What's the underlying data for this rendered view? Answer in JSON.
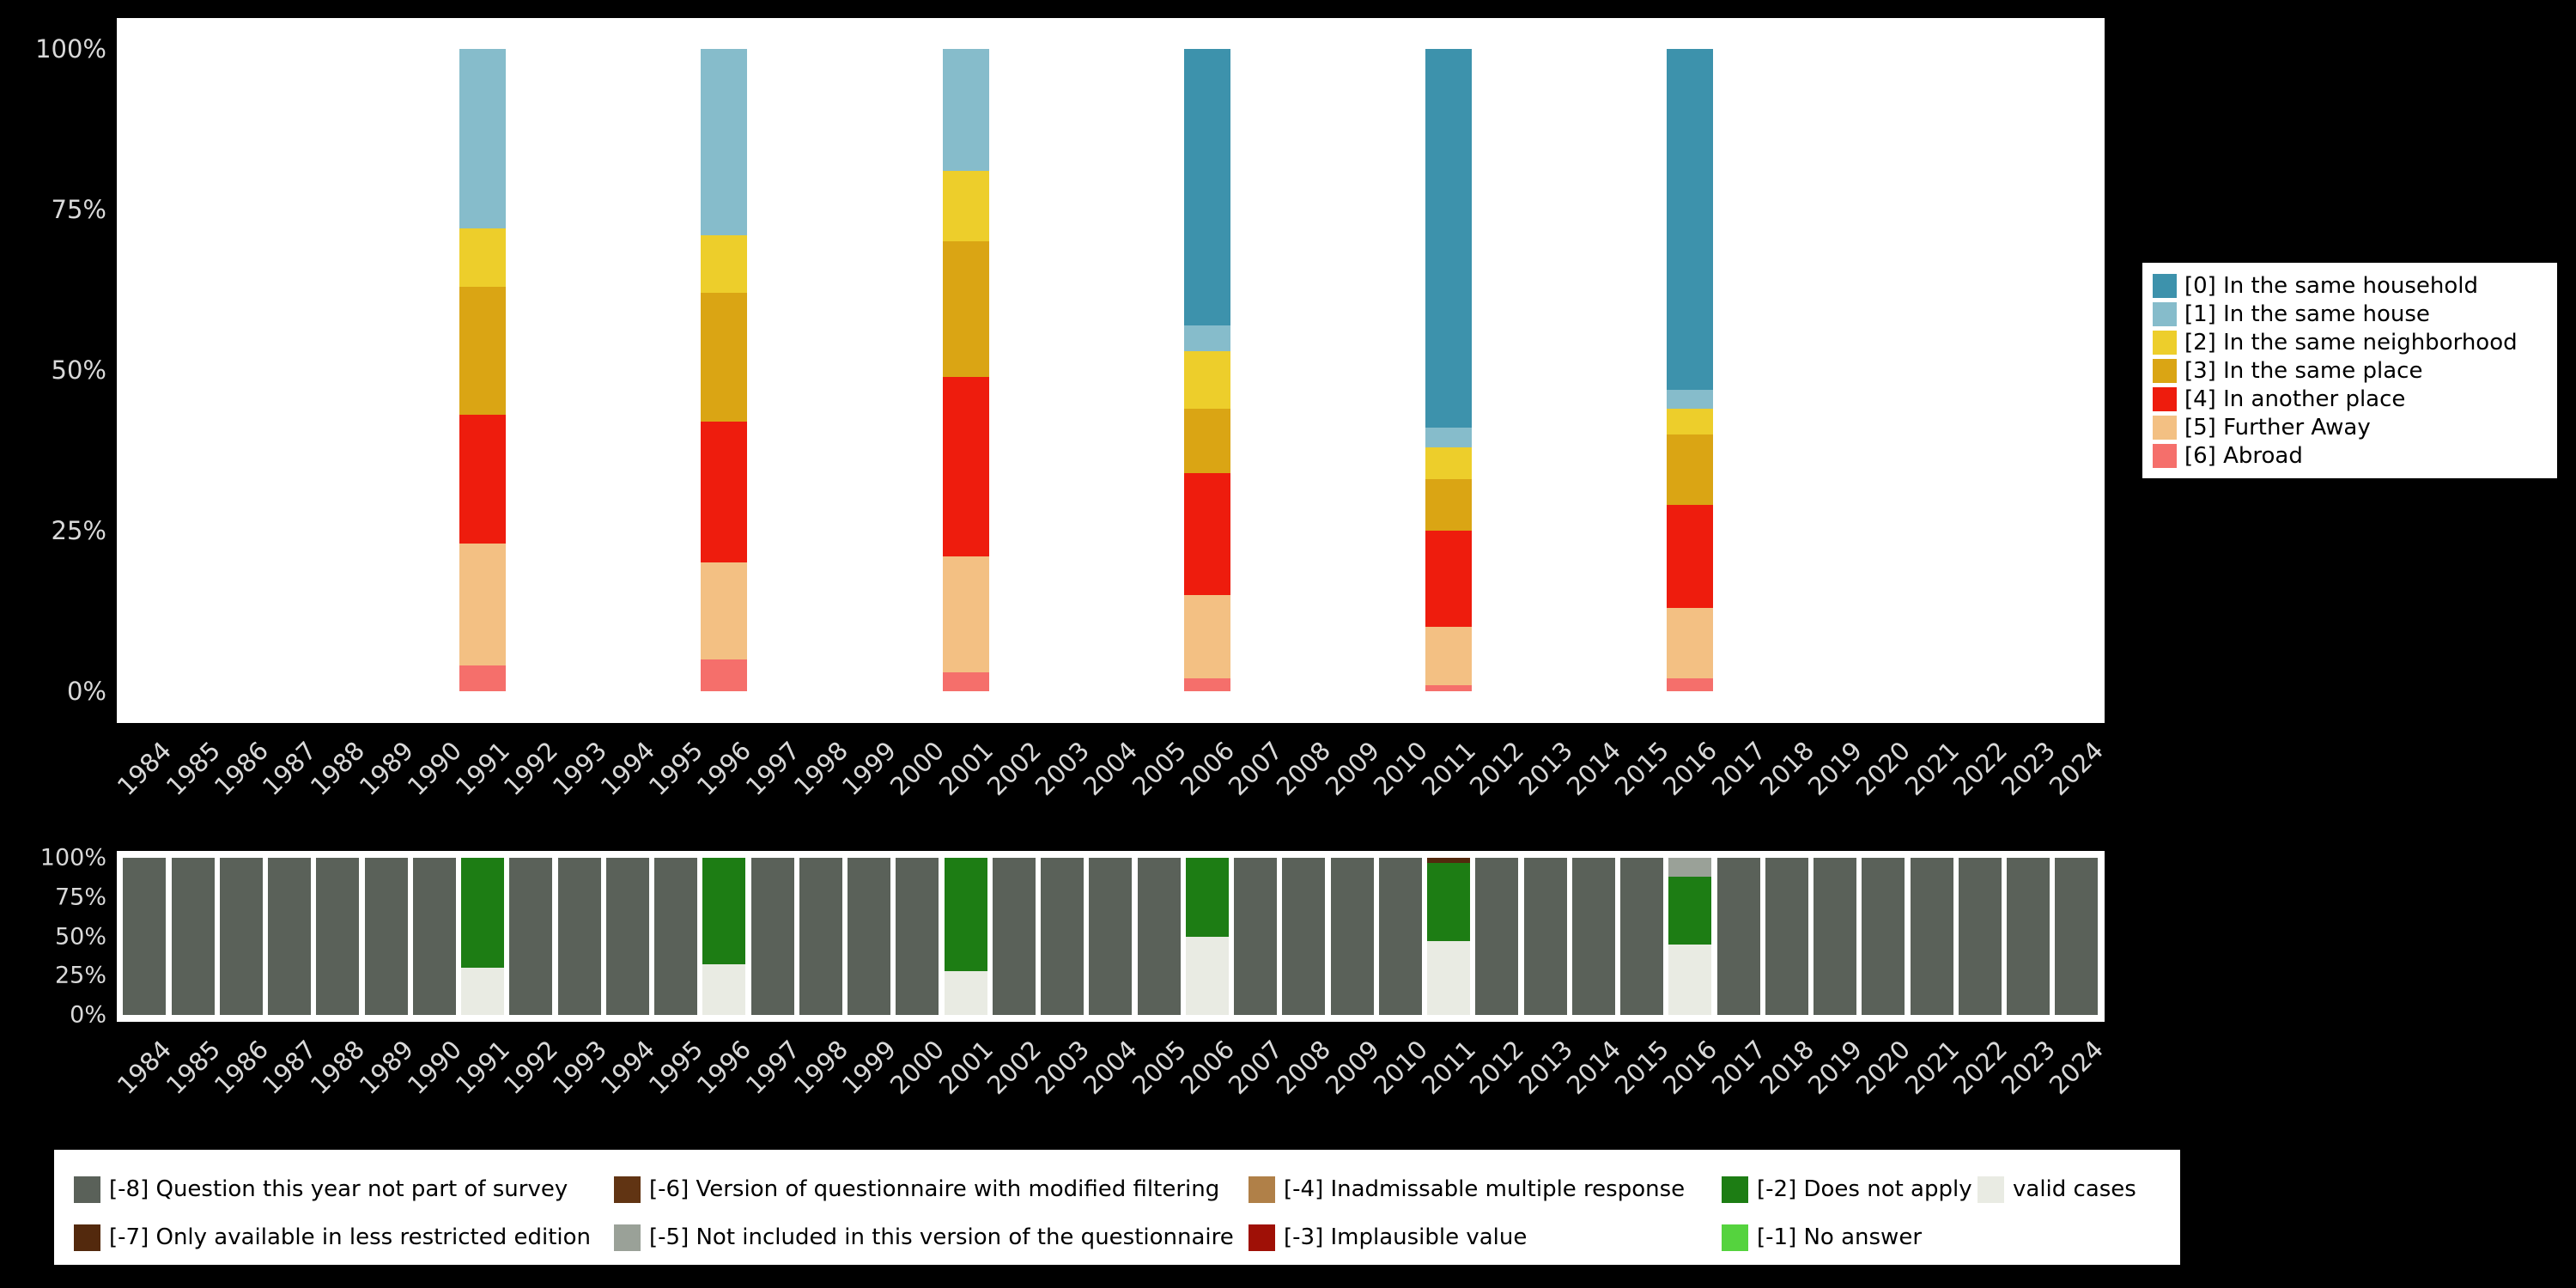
{
  "page": {
    "background": "#000000"
  },
  "chart_data": [
    {
      "type": "bar",
      "stacked": true,
      "title": "",
      "xlabel": "",
      "ylabel": "",
      "ylim": [
        0,
        100
      ],
      "grid": false,
      "legend_position": "right",
      "y_axis": {
        "ticks": [
          "100%",
          "75%",
          "50%",
          "25%",
          "0%"
        ]
      },
      "x_axis": {
        "ticks": [
          "1984",
          "1985",
          "1986",
          "1987",
          "1988",
          "1989",
          "1990",
          "1991",
          "1992",
          "1993",
          "1994",
          "1995",
          "1996",
          "1997",
          "1998",
          "1999",
          "2000",
          "2001",
          "2002",
          "2003",
          "2004",
          "2005",
          "2006",
          "2007",
          "2008",
          "2009",
          "2010",
          "2011",
          "2012",
          "2013",
          "2014",
          "2015",
          "2016",
          "2017",
          "2018",
          "2019",
          "2020",
          "2021",
          "2022",
          "2023",
          "2024"
        ]
      },
      "legend": [
        {
          "code": "0",
          "label": "[0] In the same household",
          "color": "#3d92ac"
        },
        {
          "code": "1",
          "label": "[1] In the same house",
          "color": "#86bccb"
        },
        {
          "code": "2",
          "label": "[2] In the same neighborhood",
          "color": "#edce2b"
        },
        {
          "code": "3",
          "label": "[3] In the same place",
          "color": "#daa514"
        },
        {
          "code": "4",
          "label": "[4] In another place",
          "color": "#ee1c0d"
        },
        {
          "code": "5",
          "label": "[5] Further Away",
          "color": "#f3c083"
        },
        {
          "code": "6",
          "label": "[6] Abroad",
          "color": "#f56f6b"
        }
      ],
      "segment_order_bottom_to_top": [
        "6",
        "5",
        "4",
        "3",
        "2",
        "1",
        "0"
      ],
      "bars": [
        {
          "x": "1991",
          "segments": [
            [
              "6",
              4
            ],
            [
              "5",
              19
            ],
            [
              "4",
              20
            ],
            [
              "3",
              20
            ],
            [
              "2",
              9
            ],
            [
              "1",
              28
            ],
            [
              "0",
              0
            ]
          ]
        },
        {
          "x": "1996",
          "segments": [
            [
              "6",
              5
            ],
            [
              "5",
              15
            ],
            [
              "4",
              22
            ],
            [
              "3",
              20
            ],
            [
              "2",
              9
            ],
            [
              "1",
              29
            ],
            [
              "0",
              0
            ]
          ]
        },
        {
          "x": "2001",
          "segments": [
            [
              "6",
              3
            ],
            [
              "5",
              18
            ],
            [
              "4",
              28
            ],
            [
              "3",
              21
            ],
            [
              "2",
              11
            ],
            [
              "1",
              19
            ],
            [
              "0",
              0
            ]
          ]
        },
        {
          "x": "2006",
          "segments": [
            [
              "6",
              2
            ],
            [
              "5",
              13
            ],
            [
              "4",
              19
            ],
            [
              "3",
              10
            ],
            [
              "2",
              9
            ],
            [
              "1",
              4
            ],
            [
              "0",
              43
            ]
          ]
        },
        {
          "x": "2011",
          "segments": [
            [
              "6",
              1
            ],
            [
              "5",
              9
            ],
            [
              "4",
              15
            ],
            [
              "3",
              8
            ],
            [
              "2",
              5
            ],
            [
              "1",
              3
            ],
            [
              "0",
              59
            ]
          ]
        },
        {
          "x": "2016",
          "segments": [
            [
              "6",
              2
            ],
            [
              "5",
              11
            ],
            [
              "4",
              16
            ],
            [
              "3",
              11
            ],
            [
              "2",
              4
            ],
            [
              "1",
              3
            ],
            [
              "0",
              53
            ]
          ]
        }
      ]
    },
    {
      "type": "bar",
      "stacked": true,
      "title": "",
      "xlabel": "",
      "ylabel": "",
      "ylim": [
        0,
        100
      ],
      "grid": false,
      "legend_position": "bottom",
      "y_axis": {
        "ticks": [
          "100%",
          "75%",
          "50%",
          "25%",
          "0%"
        ]
      },
      "x_axis": {
        "ticks": [
          "1984",
          "1985",
          "1986",
          "1987",
          "1988",
          "1989",
          "1990",
          "1991",
          "1992",
          "1993",
          "1994",
          "1995",
          "1996",
          "1997",
          "1998",
          "1999",
          "2000",
          "2001",
          "2002",
          "2003",
          "2004",
          "2005",
          "2006",
          "2007",
          "2008",
          "2009",
          "2010",
          "2011",
          "2012",
          "2013",
          "2014",
          "2015",
          "2016",
          "2017",
          "2018",
          "2019",
          "2020",
          "2021",
          "2022",
          "2023",
          "2024"
        ]
      },
      "legend": [
        {
          "code": "-8",
          "label": "[-8] Question this year not part of survey",
          "color": "#5a6159"
        },
        {
          "code": "-7",
          "label": "[-7] Only available in less restricted edition",
          "color": "#53290d"
        },
        {
          "code": "-6",
          "label": "[-6] Version of questionnaire with modified filtering",
          "color": "#613413"
        },
        {
          "code": "-5",
          "label": "[-5] Not included in this version of the questionnaire",
          "color": "#9aa198"
        },
        {
          "code": "-4",
          "label": "[-4] Inadmissable multiple response",
          "color": "#b08048"
        },
        {
          "code": "-3",
          "label": "[-3] Implausible value",
          "color": "#9f1006"
        },
        {
          "code": "-2",
          "label": "[-2] Does not apply",
          "color": "#1d7d14"
        },
        {
          "code": "-1",
          "label": "[-1] No answer",
          "color": "#55d33e"
        },
        {
          "code": "valid",
          "label": "valid cases",
          "color": "#e9ebe3"
        }
      ],
      "segment_order_bottom_to_top": [
        "valid",
        "-1",
        "-2",
        "-3",
        "-4",
        "-5",
        "-6",
        "-7",
        "-8"
      ],
      "default_bar": [
        [
          "-8",
          100
        ]
      ],
      "bars": [
        {
          "x": "1991",
          "segments": [
            [
              "valid",
              30
            ],
            [
              "-2",
              70
            ]
          ]
        },
        {
          "x": "1996",
          "segments": [
            [
              "valid",
              32
            ],
            [
              "-2",
              68
            ]
          ]
        },
        {
          "x": "2001",
          "segments": [
            [
              "valid",
              28
            ],
            [
              "-2",
              72
            ]
          ]
        },
        {
          "x": "2006",
          "segments": [
            [
              "valid",
              50
            ],
            [
              "-2",
              50
            ]
          ]
        },
        {
          "x": "2011",
          "segments": [
            [
              "valid",
              47
            ],
            [
              "-2",
              50
            ],
            [
              "-7",
              3
            ]
          ]
        },
        {
          "x": "2016",
          "segments": [
            [
              "valid",
              45
            ],
            [
              "-2",
              43
            ],
            [
              "-5",
              12
            ]
          ]
        }
      ]
    }
  ]
}
